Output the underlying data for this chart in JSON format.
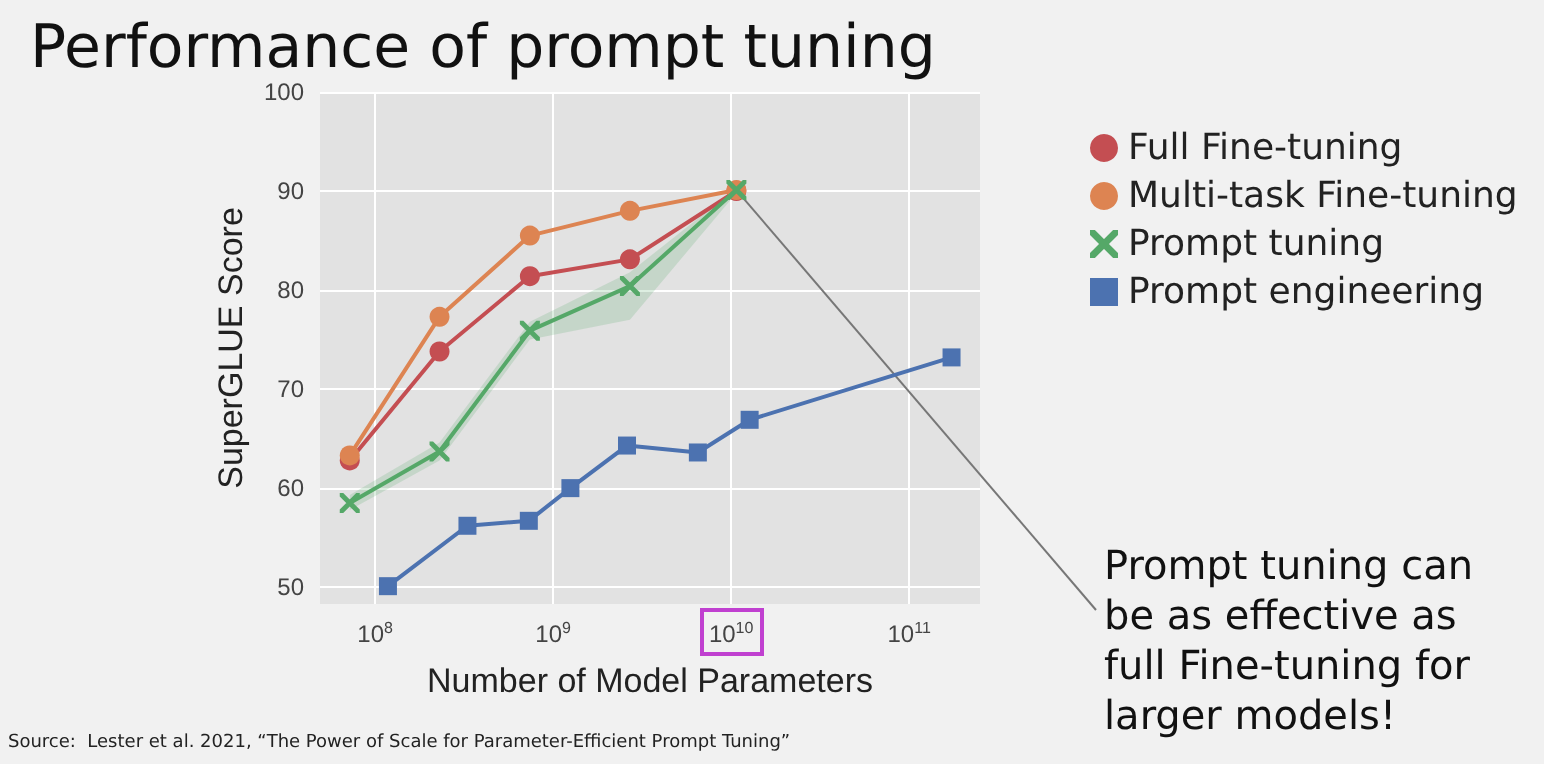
{
  "chart_data": {
    "type": "line",
    "title": "Performance of prompt tuning",
    "xlabel": "Number of Model Parameters",
    "ylabel": "SuperGLUE Score",
    "series": [
      {
        "name": "Full Fine-tuning",
        "color": "#c44e52",
        "marker": "circle",
        "x": [
          72000000.0,
          230000000.0,
          740000000.0,
          2700000000.0,
          10700000000.0
        ],
        "values": [
          62.8,
          73.8,
          81.4,
          83.1,
          90.0
        ]
      },
      {
        "name": "Multi-task Fine-tuning",
        "color": "#dd8452",
        "marker": "circle",
        "x": [
          72000000.0,
          230000000.0,
          740000000.0,
          2700000000.0,
          10700000000.0
        ],
        "values": [
          63.3,
          77.3,
          85.5,
          88.0,
          90.1
        ]
      },
      {
        "name": "Prompt tuning",
        "color": "#55a868",
        "marker": "cross",
        "x": [
          72000000.0,
          230000000.0,
          740000000.0,
          2700000000.0,
          10700000000.0
        ],
        "values": [
          58.5,
          63.7,
          75.9,
          80.4,
          90.1
        ],
        "lower": [
          57.8,
          62.8,
          75.0,
          77.0,
          89.8
        ],
        "upper": [
          59.3,
          64.6,
          76.8,
          81.8,
          90.3
        ]
      },
      {
        "name": "Prompt engineering",
        "color": "#4c72b0",
        "marker": "square",
        "x": [
          118000000.0,
          330000000.0,
          730000000.0,
          1250000000.0,
          2600000000.0,
          6500000000.0,
          12700000000.0,
          173000000000.0
        ],
        "values": [
          50.1,
          56.2,
          56.7,
          60.0,
          64.3,
          63.6,
          66.9,
          73.2
        ]
      }
    ],
    "xlim": [
      49000000.0,
      250000000000.0
    ],
    "xticks": [
      {
        "value": 100000000.0,
        "label": "10$^{8}$"
      },
      {
        "value": 1000000000.0,
        "label": "10$^{9}$"
      },
      {
        "value": 10000000000.0,
        "label": "10$^{10}$"
      },
      {
        "value": 100000000000.0,
        "label": "10$^{11}$"
      }
    ],
    "ylim": [
      48.3,
      100
    ],
    "yticks": [
      50,
      60,
      70,
      80,
      90,
      100
    ],
    "log": "x",
    "grid": true,
    "legend": "right",
    "line_style": "solid",
    "annotations": [
      "Prompt tuning can be as effective as full Fine-tuning for larger models!",
      "Source:  Lester et al. 2021, “The Power of Scale for Parameter-Efficient Prompt Tuning”"
    ]
  }
}
